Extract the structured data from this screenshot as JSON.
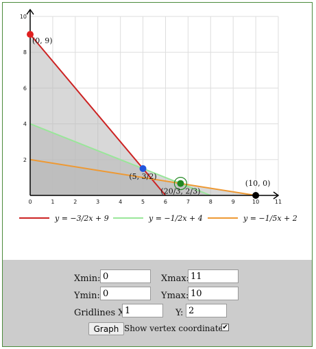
{
  "controls": {
    "xmin_label": "Xmin:",
    "xmin_value": "0",
    "xmax_label": "Xmax:",
    "xmax_value": "11",
    "ymin_label": "Ymin:",
    "ymin_value": "0",
    "ymax_label": "Ymax:",
    "ymax_value": "10",
    "gridlines_x_label": "Gridlines X:",
    "gridlines_x_value": "1",
    "gridlines_y_label": "Y:",
    "gridlines_y_value": "2",
    "graph_button": "Graph",
    "show_vertex_label": "Show vertex coordinates",
    "show_vertex_checked": true,
    "checkmark": "✔"
  },
  "chart_data": {
    "type": "line",
    "xlim": [
      0,
      11
    ],
    "ylim": [
      0,
      10
    ],
    "x_ticks": [
      "0",
      "1",
      "2",
      "3",
      "4",
      "5",
      "6",
      "7",
      "8",
      "9",
      "10",
      "11"
    ],
    "y_ticks": [
      "2",
      "4",
      "6",
      "8",
      "10"
    ],
    "grid": true,
    "series": [
      {
        "name": "y = −3/2x + 9",
        "color": "#cc2222",
        "points": [
          [
            0,
            9
          ],
          [
            6,
            0
          ]
        ]
      },
      {
        "name": "y = −1/2x + 4",
        "color": "#99e699",
        "points": [
          [
            0,
            4
          ],
          [
            8,
            0
          ]
        ]
      },
      {
        "name": "y = −1/5x + 2",
        "color": "#ee9933",
        "points": [
          [
            0,
            2
          ],
          [
            10,
            0
          ]
        ]
      }
    ],
    "shaded_regions": [
      {
        "color": "#b8b8b8",
        "points": [
          [
            0,
            0
          ],
          [
            0,
            9
          ],
          [
            6,
            0
          ]
        ]
      },
      {
        "color": "#b8b8b8",
        "points": [
          [
            0,
            0
          ],
          [
            0,
            4
          ],
          [
            8,
            0
          ]
        ]
      },
      {
        "color": "#b8b8b8",
        "points": [
          [
            0,
            0
          ],
          [
            0,
            2
          ],
          [
            10,
            0
          ]
        ]
      }
    ],
    "vertices": [
      {
        "x": 0,
        "y": 9,
        "label": "(0, 9)",
        "color": "#e02020",
        "highlight": false
      },
      {
        "x": 5,
        "y": 1.5,
        "label": "(5, 3/2)",
        "color": "#2255dd",
        "highlight": false
      },
      {
        "x": 6.667,
        "y": 0.667,
        "label": "(20/3, 2/3)",
        "color": "#228822",
        "highlight": true
      },
      {
        "x": 10,
        "y": 0,
        "label": "(10, 0)",
        "color": "#000000",
        "highlight": false
      }
    ],
    "legend": [
      {
        "color": "#cc2222",
        "text": "y  =  −3/2x + 9"
      },
      {
        "color": "#99e699",
        "text": "y  =  −1/2x + 4"
      },
      {
        "color": "#ee9933",
        "text": "y  =  −1/5x + 2"
      }
    ]
  }
}
